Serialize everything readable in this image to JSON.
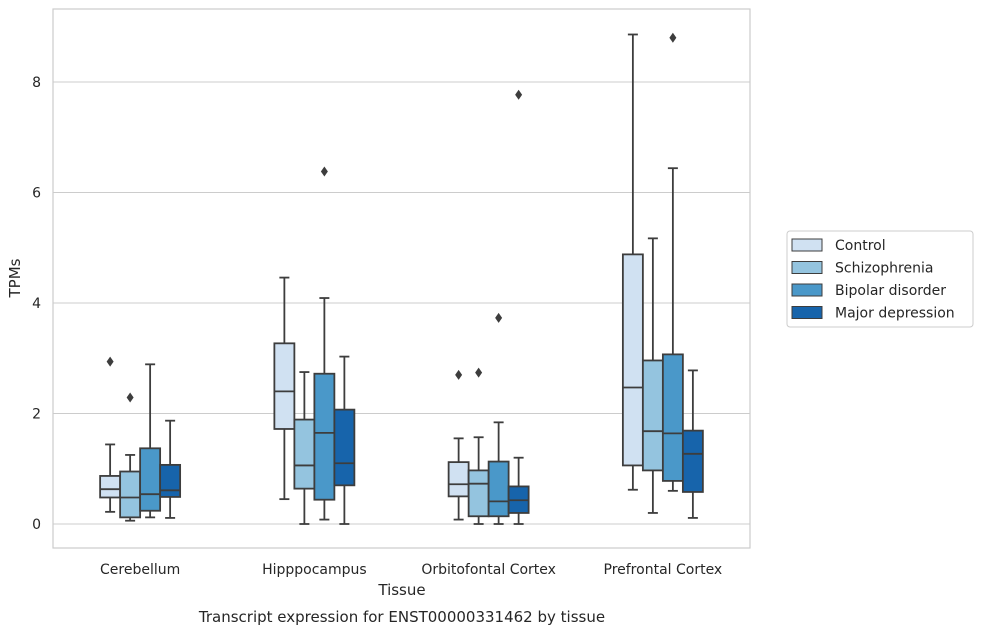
{
  "chart_data": {
    "type": "box",
    "caption": "Transcript expression for ENST00000331462 by tissue",
    "xlabel": "Tissue",
    "ylabel": "TPMs",
    "ylim": [
      -0.45,
      9.3
    ],
    "yticks": [
      0,
      2,
      4,
      6,
      8
    ],
    "grid": true,
    "legend_position": "right",
    "categories": [
      "Cerebellum",
      "Hipppocampus",
      "Orbitofontal Cortex",
      "Prefrontal Cortex"
    ],
    "series": [
      {
        "name": "Control",
        "color": "#d0e1f2",
        "boxes": [
          {
            "whislo": 0.22,
            "q1": 0.48,
            "med": 0.63,
            "q3": 0.87,
            "whishi": 1.44,
            "fliers": [
              2.94
            ]
          },
          {
            "whislo": 0.45,
            "q1": 1.72,
            "med": 2.4,
            "q3": 3.27,
            "whishi": 4.46,
            "fliers": []
          },
          {
            "whislo": 0.08,
            "q1": 0.5,
            "med": 0.72,
            "q3": 1.12,
            "whishi": 1.55,
            "fliers": [
              2.7
            ]
          },
          {
            "whislo": 0.62,
            "q1": 1.06,
            "med": 2.47,
            "q3": 4.88,
            "whishi": 8.86,
            "fliers": []
          }
        ]
      },
      {
        "name": "Schizophrenia",
        "color": "#94c4df",
        "boxes": [
          {
            "whislo": 0.06,
            "q1": 0.12,
            "med": 0.48,
            "q3": 0.95,
            "whishi": 1.25,
            "fliers": [
              2.29
            ]
          },
          {
            "whislo": 0.0,
            "q1": 0.64,
            "med": 1.06,
            "q3": 1.89,
            "whishi": 2.75,
            "fliers": []
          },
          {
            "whislo": 0.0,
            "q1": 0.14,
            "med": 0.73,
            "q3": 0.97,
            "whishi": 1.57,
            "fliers": [
              2.74
            ]
          },
          {
            "whislo": 0.2,
            "q1": 0.97,
            "med": 1.68,
            "q3": 2.96,
            "whishi": 5.17,
            "fliers": []
          }
        ]
      },
      {
        "name": "Bipolar disorder",
        "color": "#4a98c9",
        "boxes": [
          {
            "whislo": 0.12,
            "q1": 0.24,
            "med": 0.54,
            "q3": 1.37,
            "whishi": 2.89,
            "fliers": []
          },
          {
            "whislo": 0.08,
            "q1": 0.44,
            "med": 1.65,
            "q3": 2.72,
            "whishi": 4.09,
            "fliers": [
              6.38
            ]
          },
          {
            "whislo": 0.0,
            "q1": 0.14,
            "med": 0.41,
            "q3": 1.13,
            "whishi": 1.84,
            "fliers": [
              3.73
            ]
          },
          {
            "whislo": 0.6,
            "q1": 0.78,
            "med": 1.64,
            "q3": 3.07,
            "whishi": 6.44,
            "fliers": [
              8.8
            ]
          }
        ]
      },
      {
        "name": "Major depression",
        "color": "#1764ab",
        "boxes": [
          {
            "whislo": 0.11,
            "q1": 0.49,
            "med": 0.61,
            "q3": 1.07,
            "whishi": 1.87,
            "fliers": []
          },
          {
            "whislo": 0.0,
            "q1": 0.7,
            "med": 1.1,
            "q3": 2.07,
            "whishi": 3.03,
            "fliers": []
          },
          {
            "whislo": 0.0,
            "q1": 0.2,
            "med": 0.43,
            "q3": 0.68,
            "whishi": 1.2,
            "fliers": [
              7.77
            ]
          },
          {
            "whislo": 0.11,
            "q1": 0.58,
            "med": 1.27,
            "q3": 1.69,
            "whishi": 2.78,
            "fliers": []
          }
        ]
      }
    ]
  }
}
